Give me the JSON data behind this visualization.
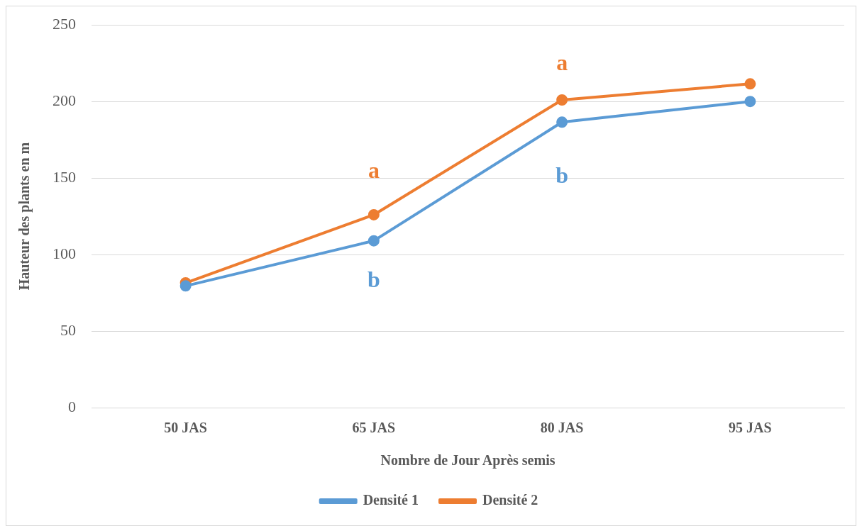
{
  "chart_data": {
    "type": "line",
    "xlabel": "Nombre de Jour Après semis",
    "ylabel": "Hauteur des plants en m",
    "categories": [
      "50 JAS",
      "65 JAS",
      "80 JAS",
      "95 JAS"
    ],
    "series": [
      {
        "name": "Densité 1",
        "color": "#5b9bd5",
        "values": [
          79.5,
          109,
          186.5,
          200
        ]
      },
      {
        "name": "Densité 2",
        "color": "#ed7d31",
        "values": [
          81.5,
          126,
          201,
          211.5
        ]
      }
    ],
    "ylim": [
      0,
      250
    ],
    "yticks": [
      0,
      50,
      100,
      150,
      200,
      250
    ],
    "grid": "y",
    "legend": "bottom",
    "marker": "circle",
    "line_style": "solid",
    "annotations": [
      "a",
      "b",
      "a",
      "b"
    ]
  }
}
